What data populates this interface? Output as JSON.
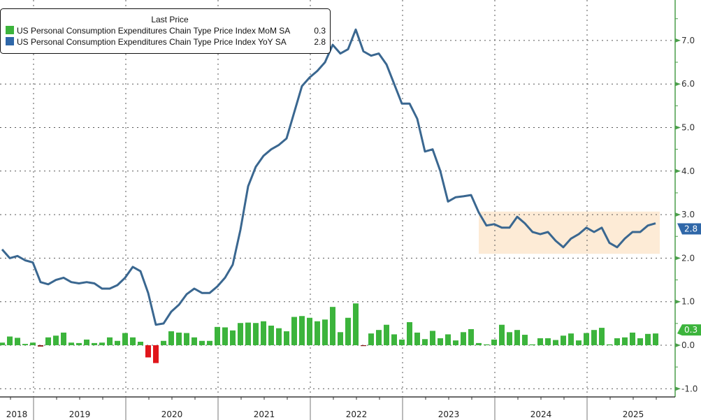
{
  "chart_data": {
    "type": "bar+line",
    "legend": {
      "title": "Last Price",
      "placement": "top-left",
      "entries": [
        {
          "name": "US Personal Consumption Expenditures Chain Type Price Index MoM SA",
          "last": "0.3",
          "color": "#3cb43c"
        },
        {
          "name": "US Personal Consumption Expenditures Chain Type Price Index YoY SA",
          "last": "2.8",
          "color": "#2f67a8"
        }
      ]
    },
    "x": {
      "start": "2018-08",
      "end": "2025-09",
      "frequency": "monthly",
      "year_labels": [
        "2018",
        "2019",
        "2020",
        "2021",
        "2022",
        "2023",
        "2024",
        "2025"
      ]
    },
    "y": {
      "side": "right",
      "ylim": [
        -1.1,
        7.9
      ],
      "ticks": [
        "-1.0",
        "0.0",
        "1.0",
        "2.0",
        "3.0",
        "4.0",
        "5.0",
        "6.0",
        "7.0"
      ],
      "grid": true
    },
    "series": [
      {
        "name": "US Personal Consumption Expenditures Chain Type Price Index MoM SA",
        "type": "bar",
        "color": "#3cb43c",
        "negative_color": "#e0161b",
        "values": [
          0.06,
          0.2,
          0.17,
          0.03,
          0.06,
          -0.03,
          0.18,
          0.22,
          0.29,
          0.06,
          0.05,
          0.13,
          0.05,
          0.06,
          0.18,
          0.1,
          0.28,
          0.18,
          0.08,
          -0.28,
          -0.41,
          0.1,
          0.32,
          0.29,
          0.28,
          0.18,
          0.1,
          0.1,
          0.42,
          0.41,
          0.34,
          0.51,
          0.52,
          0.51,
          0.55,
          0.45,
          0.39,
          0.32,
          0.65,
          0.67,
          0.63,
          0.55,
          0.59,
          0.88,
          0.3,
          0.63,
          0.96,
          -0.01,
          0.27,
          0.35,
          0.47,
          0.25,
          0.13,
          0.53,
          0.29,
          0.14,
          0.33,
          0.16,
          0.25,
          0.11,
          0.3,
          0.37,
          0.05,
          0.01,
          0.13,
          0.47,
          0.3,
          0.35,
          0.24,
          0.0,
          0.16,
          0.16,
          0.12,
          0.22,
          0.27,
          0.11,
          0.28,
          0.35,
          0.4,
          0.01,
          0.16,
          0.18,
          0.29,
          0.16,
          0.26,
          0.27
        ],
        "last_label": "0.3"
      },
      {
        "name": "US Personal Consumption Expenditures Chain Type Price Index YoY SA",
        "type": "line",
        "color": "#3a6790",
        "values": [
          2.2,
          2.0,
          2.05,
          1.95,
          1.9,
          1.45,
          1.4,
          1.5,
          1.55,
          1.45,
          1.42,
          1.45,
          1.42,
          1.3,
          1.3,
          1.38,
          1.55,
          1.8,
          1.7,
          1.2,
          0.47,
          0.5,
          0.77,
          0.93,
          1.17,
          1.3,
          1.2,
          1.2,
          1.35,
          1.55,
          1.85,
          2.65,
          3.65,
          4.1,
          4.35,
          4.5,
          4.6,
          4.75,
          5.35,
          5.95,
          6.15,
          6.3,
          6.5,
          6.9,
          6.7,
          6.8,
          7.25,
          6.75,
          6.65,
          6.7,
          6.45,
          6.0,
          5.55,
          5.55,
          5.2,
          4.45,
          4.5,
          4.0,
          3.3,
          3.4,
          3.42,
          3.45,
          3.05,
          2.75,
          2.78,
          2.7,
          2.7,
          2.95,
          2.8,
          2.6,
          2.55,
          2.6,
          2.4,
          2.25,
          2.45,
          2.55,
          2.7,
          2.6,
          2.7,
          2.35,
          2.25,
          2.45,
          2.6,
          2.6,
          2.75,
          2.8
        ],
        "last_label": "2.8"
      }
    ],
    "highlight_band": {
      "x_from": "2023-10",
      "x_to": "2025-09",
      "y_from": 2.1,
      "y_to": 3.07,
      "color": "#fdebd6"
    },
    "axis_color": "#4a9e4a"
  }
}
